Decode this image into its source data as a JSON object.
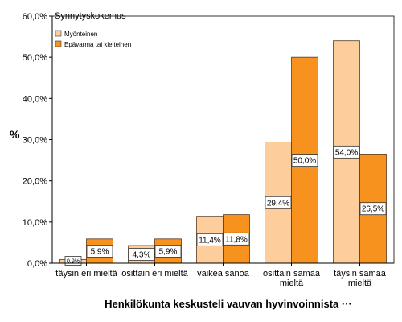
{
  "chart_data": {
    "type": "bar",
    "ylabel": "%",
    "xlabel": "Henkilökunta keskusteli vauvan hyvinvoinnista ···",
    "ylim": [
      0,
      60
    ],
    "yticks": [
      "0,0%",
      "10,0%",
      "20,0%",
      "30,0%",
      "40,0%",
      "50,0%",
      "60,0%"
    ],
    "grid": false,
    "legend": {
      "title": "Synnytyskokemus",
      "placement": "top-left"
    },
    "categories": [
      [
        "täysin eri mieltä"
      ],
      [
        "osittain eri mieltä"
      ],
      [
        "vaikea sanoa"
      ],
      [
        "osittain samaa",
        "mieltä"
      ],
      [
        "täysin samaa",
        "mieltä"
      ]
    ],
    "series": [
      {
        "name": "Myönteinen",
        "color": "#fdcd9b",
        "values": [
          0.9,
          4.3,
          11.4,
          29.4,
          54.0
        ],
        "labels": [
          "0,9%",
          "4,3%",
          "11,4%",
          "29,4%",
          "54,0%"
        ]
      },
      {
        "name": "Epävarma tai kielteinen",
        "color": "#f7921e",
        "values": [
          5.9,
          5.9,
          11.8,
          50.0,
          26.5
        ],
        "labels": [
          "5,9%",
          "5,9%",
          "11,8%",
          "50,0%",
          "26,5%"
        ]
      }
    ]
  }
}
